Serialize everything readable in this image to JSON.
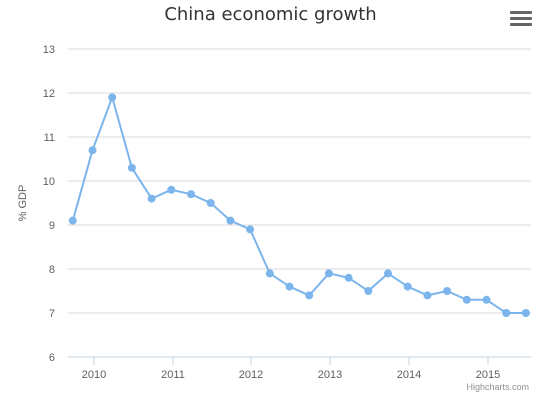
{
  "chart_data": {
    "type": "line",
    "title": "China economic growth",
    "ylabel": "% GDP",
    "xlabel": "",
    "ylim": [
      6,
      13
    ],
    "yticks": [
      6,
      7,
      8,
      9,
      10,
      11,
      12,
      13
    ],
    "xticks": [
      "2010",
      "2011",
      "2012",
      "2013",
      "2014",
      "2015"
    ],
    "series": [
      {
        "x": [
          "2009 Q4",
          "2010 Q1",
          "2010 Q2",
          "2010 Q3",
          "2010 Q4",
          "2011 Q1",
          "2011 Q2",
          "2011 Q3",
          "2011 Q4",
          "2012 Q1",
          "2012 Q2",
          "2012 Q3",
          "2012 Q4",
          "2013 Q1",
          "2013 Q2",
          "2013 Q3",
          "2013 Q4",
          "2014 Q1",
          "2014 Q2",
          "2014 Q3",
          "2014 Q4",
          "2015 Q1",
          "2015 Q2",
          "2015 Q3"
        ],
        "values": [
          9.1,
          10.7,
          11.9,
          10.3,
          9.6,
          9.8,
          9.7,
          9.5,
          9.1,
          8.9,
          7.9,
          7.6,
          7.4,
          7.9,
          7.8,
          7.5,
          7.9,
          7.6,
          7.4,
          7.5,
          7.3,
          7.3,
          7.0,
          7.0
        ]
      }
    ],
    "grid": true,
    "line_color": "#7cb5ec"
  },
  "ui": {
    "menu_icon": "hamburger-menu-icon",
    "credits": "Highcharts.com"
  }
}
